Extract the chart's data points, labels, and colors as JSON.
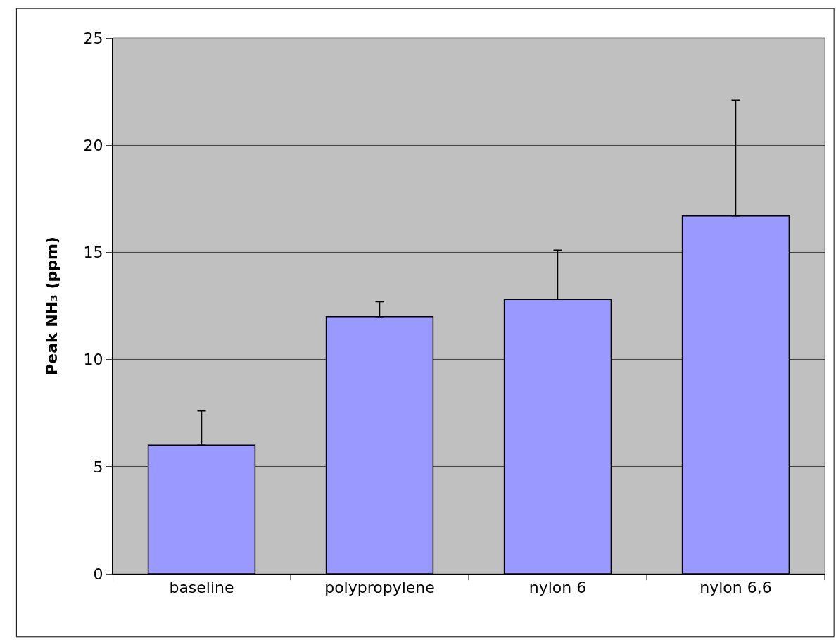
{
  "chart_data": {
    "type": "bar",
    "ylabel": "Peak NH₃ (ppm)",
    "categories": [
      "baseline",
      "polypropylene",
      "nylon 6",
      "nylon 6,6"
    ],
    "values": [
      6.0,
      12.0,
      12.8,
      16.7
    ],
    "errors": [
      [
        6.0,
        7.6
      ],
      [
        12.0,
        12.7
      ],
      [
        12.8,
        15.1
      ],
      [
        16.7,
        22.1
      ]
    ],
    "color": "#9999ff",
    "ylim": [
      0,
      25
    ],
    "yticks": [
      0,
      5,
      10,
      15,
      20,
      25
    ],
    "grid": "y",
    "legend": false
  }
}
